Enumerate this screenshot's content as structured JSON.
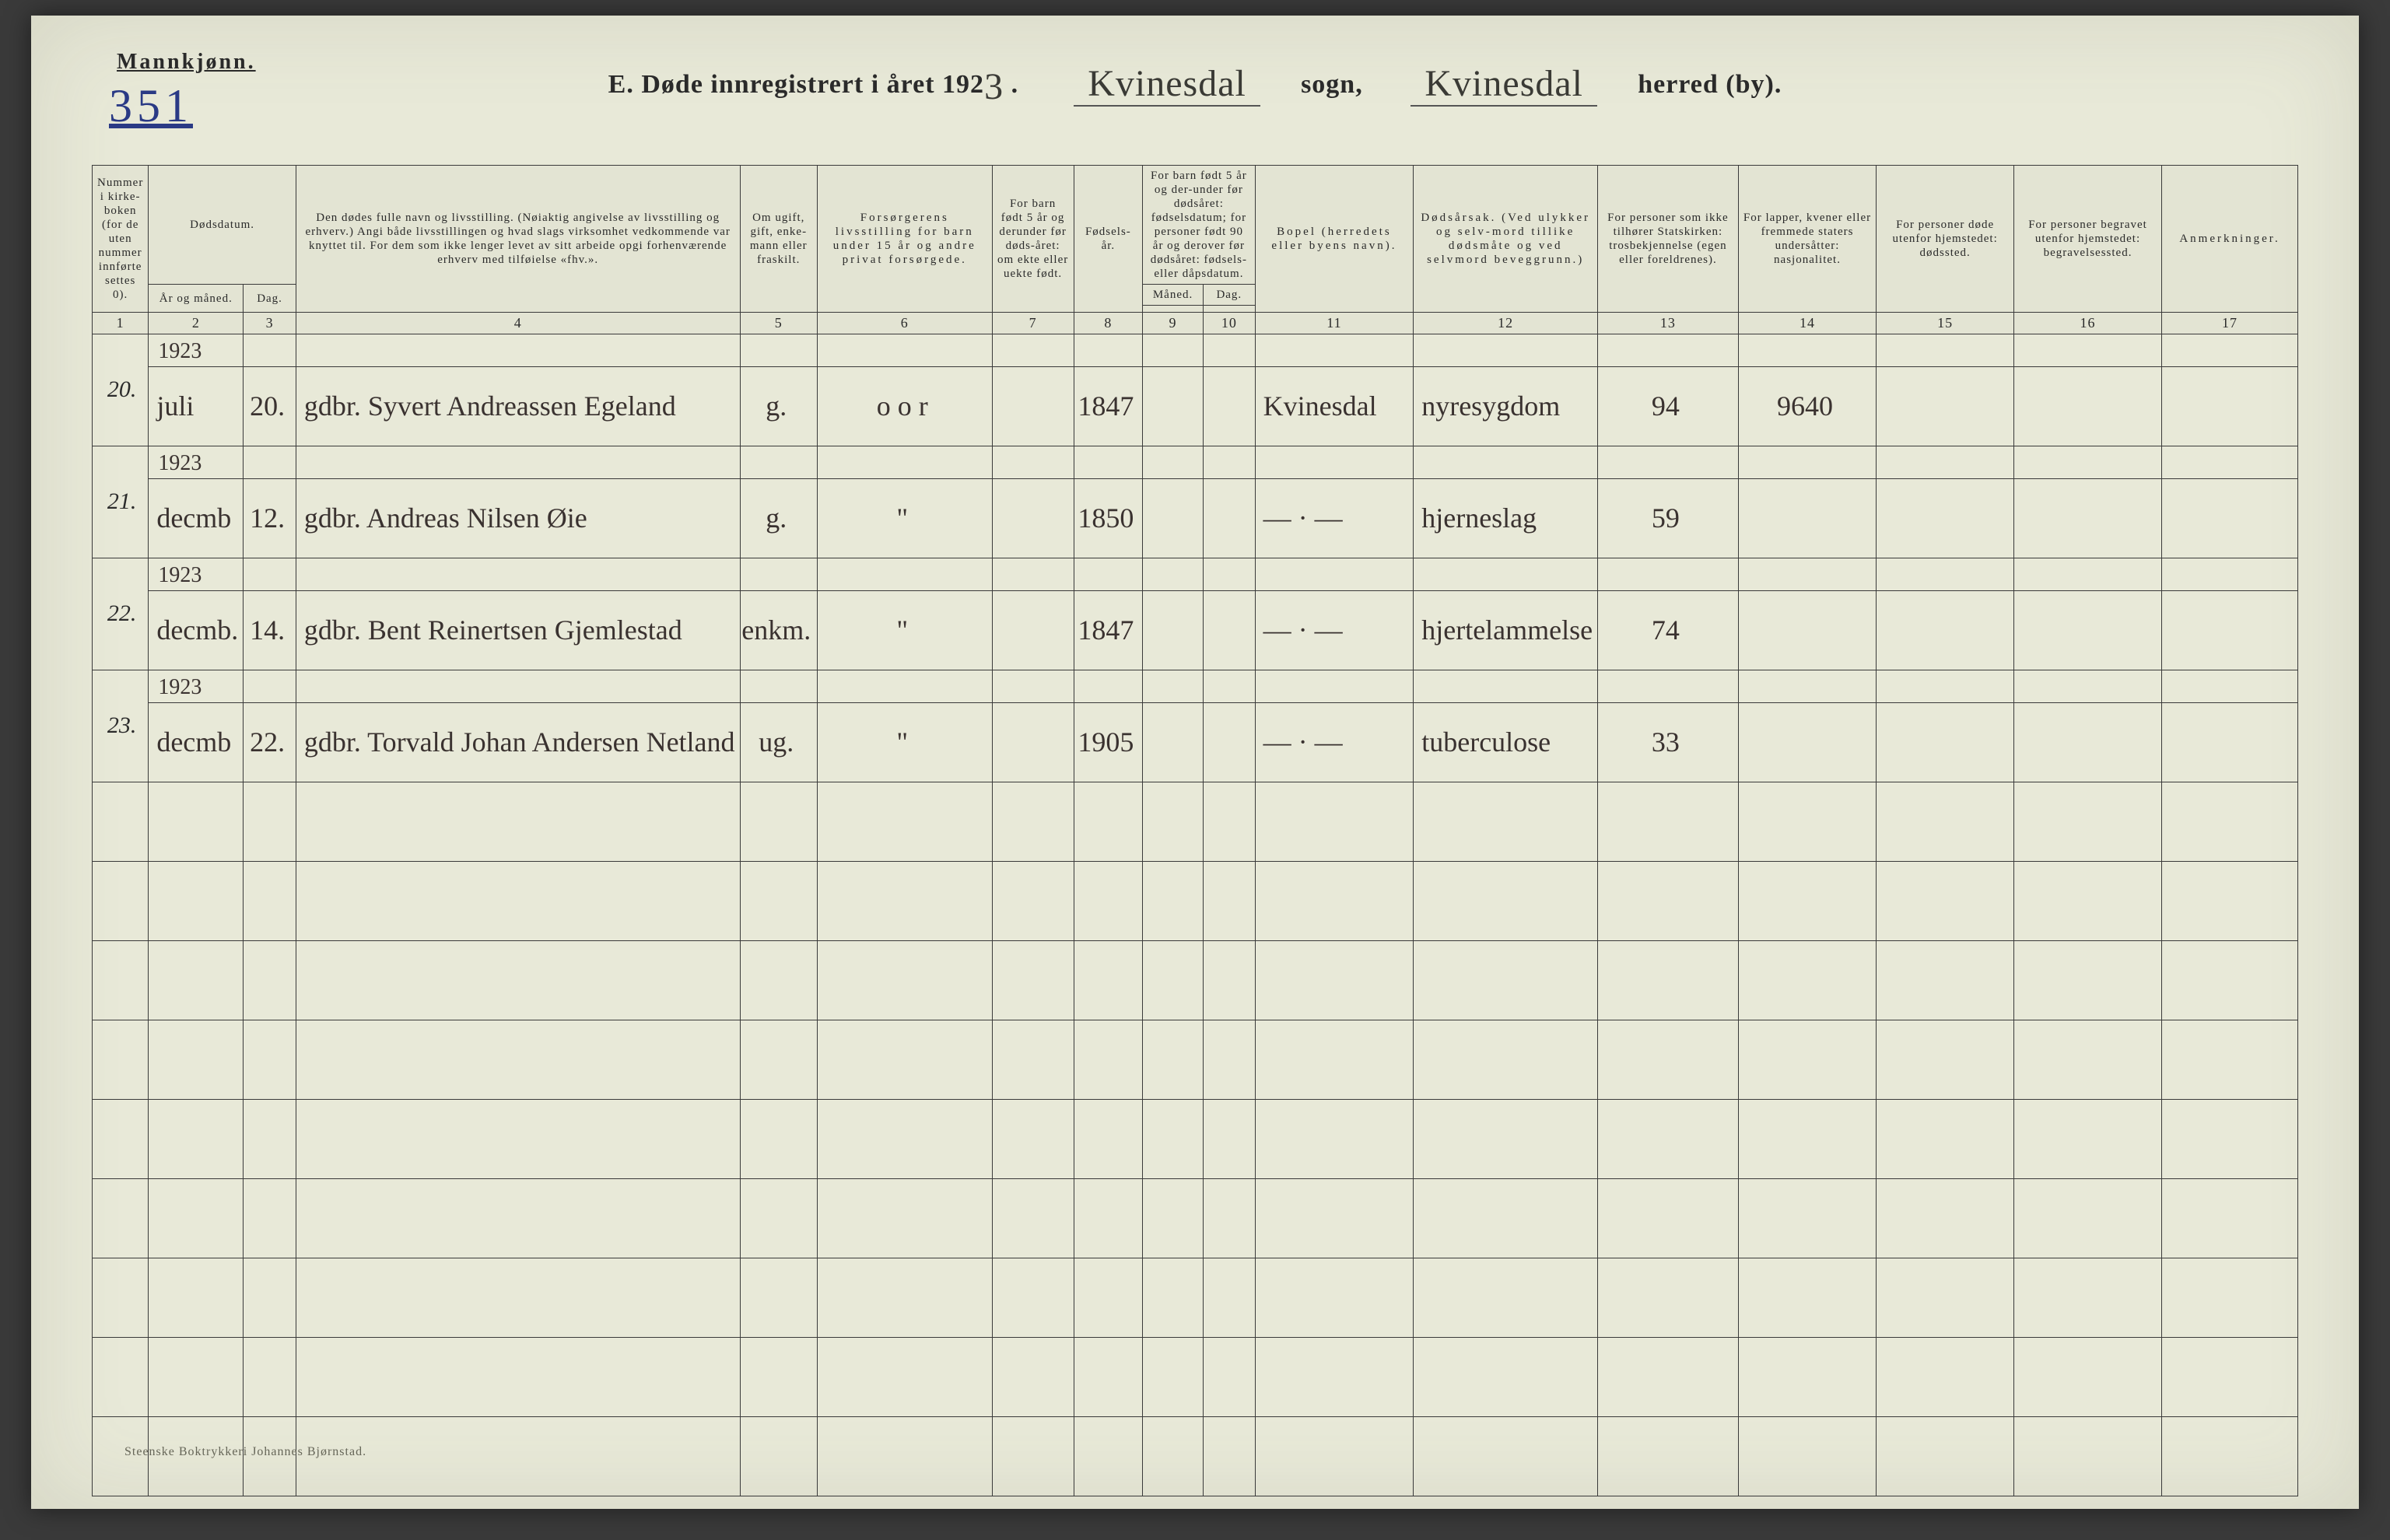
{
  "gender_label": "Mannkjønn.",
  "page_number_hand": "351",
  "title": {
    "prefix": "E.   Døde innregistrert i året 192",
    "year_digit": "3",
    "dot": ".",
    "sogn_name": "Kvinesdal",
    "sogn_word": "sogn,",
    "herred_name": "Kvinesdal",
    "herred_word": "herred (by)."
  },
  "headers": {
    "c1": "Nummer i kirke-boken (for de uten nummer innførte settes 0).",
    "c23_top": "Dødsdatum.",
    "c2": "År og måned.",
    "c3": "Dag.",
    "c4": "Den dødes fulle navn og livsstilling. (Nøiaktig angivelse av livsstilling og erhverv.) Angi både livsstillingen og hvad slags virksomhet vedkommende var knyttet til. For dem som ikke lenger levet av sitt arbeide opgi forhenværende erhverv med tilføielse «fhv.».",
    "c5": "Om ugift, gift, enke-mann eller fraskilt.",
    "c6": "Forsørgerens livsstilling for barn under 15 år og andre privat forsørgede.",
    "c7": "For barn født 5 år og derunder før døds-året: om ekte eller uekte født.",
    "c8": "Fødsels-år.",
    "c910_top": "For barn født 5 år og der-under før dødsåret: fødselsdatum; for personer født 90 år og derover før dødsåret: fødsels- eller dåpsdatum.",
    "c9": "Måned.",
    "c10": "Dag.",
    "c11": "Bopel (herredets eller byens navn).",
    "c12": "Dødsårsak. (Ved ulykker og selv-mord tillike dødsmåte og ved selvmord beveggrunn.)",
    "c13": "For personer som ikke tilhører Statskirken: trosbekjennelse (egen eller foreldrenes).",
    "c14": "For lapper, kvener eller fremmede staters undersåtter: nasjonalitet.",
    "c15": "For personer døde utenfor hjemstedet: dødssted.",
    "c16": "For personer begravet utenfor hjemstedet: begravelsessted.",
    "c17": "Anmerkninger."
  },
  "colnums": [
    "1",
    "2",
    "3",
    "4",
    "5",
    "6",
    "7",
    "8",
    "9",
    "10",
    "11",
    "12",
    "13",
    "14",
    "15",
    "16",
    "17"
  ],
  "rows": [
    {
      "no": "20.",
      "year": "1923",
      "month": "juli",
      "day": "20.",
      "name": "gdbr. Syvert Andreassen Egeland",
      "status": "g.",
      "c6": "o o r",
      "c7": "",
      "birth": "1847",
      "bopel": "Kvinesdal",
      "cause": "nyresygdom",
      "c13": "94",
      "c14": "9640"
    },
    {
      "no": "21.",
      "year": "1923",
      "month": "decmb",
      "day": "12.",
      "name": "gdbr. Andreas Nilsen Øie",
      "status": "g.",
      "c6": "\"",
      "c7": "",
      "birth": "1850",
      "bopel": "— · —",
      "cause": "hjerneslag",
      "c13": "59",
      "c14": ""
    },
    {
      "no": "22.",
      "year": "1923",
      "month": "decmb.",
      "day": "14.",
      "name": "gdbr. Bent Reinertsen Gjemlestad",
      "status": "enkm.",
      "c6": "\"",
      "c7": "",
      "birth": "1847",
      "bopel": "— · —",
      "cause": "hjertelammelse",
      "c13": "74",
      "c14": ""
    },
    {
      "no": "23.",
      "year": "1923",
      "month": "decmb",
      "day": "22.",
      "name": "gdbr. Torvald Johan Andersen Netland",
      "status": "ug.",
      "c6": "\"",
      "c7": "",
      "birth": "1905",
      "bopel": "— · —",
      "cause": "tuberculose",
      "c13": "33",
      "c14": ""
    }
  ],
  "empty_rows": 9,
  "footer": "Steenske Boktrykkeri Johannes Bjørnstad."
}
